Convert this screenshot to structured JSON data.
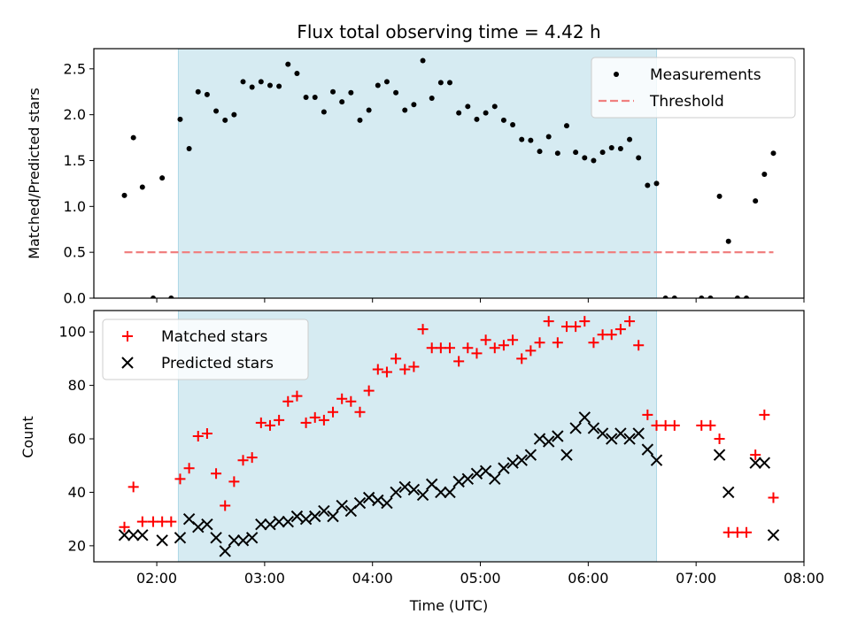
{
  "chart_data": [
    {
      "type": "scatter",
      "title": "Flux total observing time = 4.42 h",
      "xlabel": "",
      "ylabel": "Matched/Predicted stars",
      "ylim": [
        0,
        2.72
      ],
      "xlim": [
        "01:25",
        "08:00"
      ],
      "yticks": [
        "0.0",
        "0.5",
        "1.0",
        "1.5",
        "2.0",
        "2.5"
      ],
      "shaded_span": [
        "02:12",
        "06:38"
      ],
      "legend_placement": "top-right",
      "series": [
        {
          "name": "Measurements",
          "marker": "dot",
          "color": "#000000",
          "points": [
            [
              "01:42",
              1.12
            ],
            [
              "01:47",
              1.75
            ],
            [
              "01:52",
              1.21
            ],
            [
              "01:58",
              0.0
            ],
            [
              "02:03",
              1.31
            ],
            [
              "02:08",
              0.0
            ],
            [
              "02:13",
              1.95
            ],
            [
              "02:18",
              1.63
            ],
            [
              "02:23",
              2.25
            ],
            [
              "02:28",
              2.22
            ],
            [
              "02:33",
              2.04
            ],
            [
              "02:38",
              1.94
            ],
            [
              "02:43",
              2.0
            ],
            [
              "02:48",
              2.36
            ],
            [
              "02:53",
              2.3
            ],
            [
              "02:58",
              2.36
            ],
            [
              "03:03",
              2.32
            ],
            [
              "03:08",
              2.31
            ],
            [
              "03:13",
              2.55
            ],
            [
              "03:18",
              2.45
            ],
            [
              "03:23",
              2.19
            ],
            [
              "03:28",
              2.19
            ],
            [
              "03:33",
              2.03
            ],
            [
              "03:38",
              2.25
            ],
            [
              "03:43",
              2.14
            ],
            [
              "03:48",
              2.24
            ],
            [
              "03:53",
              1.94
            ],
            [
              "03:58",
              2.05
            ],
            [
              "04:03",
              2.32
            ],
            [
              "04:08",
              2.36
            ],
            [
              "04:13",
              2.24
            ],
            [
              "04:18",
              2.05
            ],
            [
              "04:23",
              2.11
            ],
            [
              "04:28",
              2.59
            ],
            [
              "04:33",
              2.18
            ],
            [
              "04:38",
              2.35
            ],
            [
              "04:43",
              2.35
            ],
            [
              "04:48",
              2.02
            ],
            [
              "04:53",
              2.09
            ],
            [
              "04:58",
              1.95
            ],
            [
              "05:03",
              2.02
            ],
            [
              "05:08",
              2.09
            ],
            [
              "05:13",
              1.94
            ],
            [
              "05:18",
              1.89
            ],
            [
              "05:23",
              1.73
            ],
            [
              "05:28",
              1.72
            ],
            [
              "05:33",
              1.6
            ],
            [
              "05:38",
              1.76
            ],
            [
              "05:43",
              1.58
            ],
            [
              "05:48",
              1.88
            ],
            [
              "05:53",
              1.59
            ],
            [
              "05:58",
              1.53
            ],
            [
              "06:03",
              1.5
            ],
            [
              "06:08",
              1.59
            ],
            [
              "06:13",
              1.64
            ],
            [
              "06:18",
              1.63
            ],
            [
              "06:23",
              1.73
            ],
            [
              "06:28",
              1.53
            ],
            [
              "06:33",
              1.23
            ],
            [
              "06:38",
              1.25
            ],
            [
              "06:43",
              0.0
            ],
            [
              "06:48",
              0.0
            ],
            [
              "07:03",
              0.0
            ],
            [
              "07:08",
              0.0
            ],
            [
              "07:13",
              1.11
            ],
            [
              "07:18",
              0.62
            ],
            [
              "07:23",
              0.0
            ],
            [
              "07:28",
              0.0
            ],
            [
              "07:33",
              1.06
            ],
            [
              "07:38",
              1.35
            ],
            [
              "07:43",
              1.58
            ]
          ]
        },
        {
          "name": "Threshold",
          "marker": "dashed-line",
          "color": "#f08080",
          "points": [
            [
              "01:42",
              0.5
            ],
            [
              "07:43",
              0.5
            ]
          ]
        }
      ]
    },
    {
      "type": "scatter",
      "title": "",
      "xlabel": "Time (UTC)",
      "ylabel": "Count",
      "ylim": [
        14,
        108
      ],
      "xlim": [
        "01:25",
        "08:00"
      ],
      "yticks": [
        "20",
        "40",
        "60",
        "80",
        "100"
      ],
      "xticks": [
        "02:00",
        "03:00",
        "04:00",
        "05:00",
        "06:00",
        "07:00",
        "08:00"
      ],
      "shaded_span": [
        "02:12",
        "06:38"
      ],
      "legend_placement": "top-left",
      "series": [
        {
          "name": "Matched stars",
          "marker": "plus",
          "color": "#ff0000",
          "points": [
            [
              "01:42",
              27
            ],
            [
              "01:47",
              42
            ],
            [
              "01:52",
              29
            ],
            [
              "01:58",
              29
            ],
            [
              "02:03",
              29
            ],
            [
              "02:08",
              29
            ],
            [
              "02:13",
              45
            ],
            [
              "02:18",
              49
            ],
            [
              "02:23",
              61
            ],
            [
              "02:28",
              62
            ],
            [
              "02:33",
              47
            ],
            [
              "02:38",
              35
            ],
            [
              "02:43",
              44
            ],
            [
              "02:48",
              52
            ],
            [
              "02:53",
              53
            ],
            [
              "02:58",
              66
            ],
            [
              "03:03",
              65
            ],
            [
              "03:08",
              67
            ],
            [
              "03:13",
              74
            ],
            [
              "03:18",
              76
            ],
            [
              "03:23",
              66
            ],
            [
              "03:28",
              68
            ],
            [
              "03:33",
              67
            ],
            [
              "03:38",
              70
            ],
            [
              "03:43",
              75
            ],
            [
              "03:48",
              74
            ],
            [
              "03:53",
              70
            ],
            [
              "03:58",
              78
            ],
            [
              "04:03",
              86
            ],
            [
              "04:08",
              85
            ],
            [
              "04:13",
              90
            ],
            [
              "04:18",
              86
            ],
            [
              "04:23",
              87
            ],
            [
              "04:28",
              101
            ],
            [
              "04:33",
              94
            ],
            [
              "04:38",
              94
            ],
            [
              "04:43",
              94
            ],
            [
              "04:48",
              89
            ],
            [
              "04:53",
              94
            ],
            [
              "04:58",
              92
            ],
            [
              "05:03",
              97
            ],
            [
              "05:08",
              94
            ],
            [
              "05:13",
              95
            ],
            [
              "05:18",
              97
            ],
            [
              "05:23",
              90
            ],
            [
              "05:28",
              93
            ],
            [
              "05:33",
              96
            ],
            [
              "05:38",
              104
            ],
            [
              "05:43",
              96
            ],
            [
              "05:48",
              102
            ],
            [
              "05:53",
              102
            ],
            [
              "05:58",
              104
            ],
            [
              "06:03",
              96
            ],
            [
              "06:08",
              99
            ],
            [
              "06:13",
              99
            ],
            [
              "06:18",
              101
            ],
            [
              "06:23",
              104
            ],
            [
              "06:28",
              95
            ],
            [
              "06:33",
              69
            ],
            [
              "06:38",
              65
            ],
            [
              "06:43",
              65
            ],
            [
              "06:48",
              65
            ],
            [
              "07:03",
              65
            ],
            [
              "07:08",
              65
            ],
            [
              "07:13",
              60
            ],
            [
              "07:18",
              25
            ],
            [
              "07:23",
              25
            ],
            [
              "07:28",
              25
            ],
            [
              "07:33",
              54
            ],
            [
              "07:38",
              69
            ],
            [
              "07:43",
              38
            ]
          ]
        },
        {
          "name": "Predicted stars",
          "marker": "x",
          "color": "#000000",
          "points": [
            [
              "01:42",
              24
            ],
            [
              "01:47",
              24
            ],
            [
              "01:52",
              24
            ],
            [
              "02:03",
              22
            ],
            [
              "02:13",
              23
            ],
            [
              "02:18",
              30
            ],
            [
              "02:23",
              27
            ],
            [
              "02:28",
              28
            ],
            [
              "02:33",
              23
            ],
            [
              "02:38",
              18
            ],
            [
              "02:43",
              22
            ],
            [
              "02:48",
              22
            ],
            [
              "02:53",
              23
            ],
            [
              "02:58",
              28
            ],
            [
              "03:03",
              28
            ],
            [
              "03:08",
              29
            ],
            [
              "03:13",
              29
            ],
            [
              "03:18",
              31
            ],
            [
              "03:23",
              30
            ],
            [
              "03:28",
              31
            ],
            [
              "03:33",
              33
            ],
            [
              "03:38",
              31
            ],
            [
              "03:43",
              35
            ],
            [
              "03:48",
              33
            ],
            [
              "03:53",
              36
            ],
            [
              "03:58",
              38
            ],
            [
              "04:03",
              37
            ],
            [
              "04:08",
              36
            ],
            [
              "04:13",
              40
            ],
            [
              "04:18",
              42
            ],
            [
              "04:23",
              41
            ],
            [
              "04:28",
              39
            ],
            [
              "04:33",
              43
            ],
            [
              "04:38",
              40
            ],
            [
              "04:43",
              40
            ],
            [
              "04:48",
              44
            ],
            [
              "04:53",
              45
            ],
            [
              "04:58",
              47
            ],
            [
              "05:03",
              48
            ],
            [
              "05:08",
              45
            ],
            [
              "05:13",
              49
            ],
            [
              "05:18",
              51
            ],
            [
              "05:23",
              52
            ],
            [
              "05:28",
              54
            ],
            [
              "05:33",
              60
            ],
            [
              "05:38",
              59
            ],
            [
              "05:43",
              61
            ],
            [
              "05:48",
              54
            ],
            [
              "05:53",
              64
            ],
            [
              "05:58",
              68
            ],
            [
              "06:03",
              64
            ],
            [
              "06:08",
              62
            ],
            [
              "06:13",
              60
            ],
            [
              "06:18",
              62
            ],
            [
              "06:23",
              60
            ],
            [
              "06:28",
              62
            ],
            [
              "06:33",
              56
            ],
            [
              "06:38",
              52
            ],
            [
              "07:13",
              54
            ],
            [
              "07:18",
              40
            ],
            [
              "07:33",
              51
            ],
            [
              "07:38",
              51
            ],
            [
              "07:43",
              24
            ]
          ]
        }
      ]
    }
  ]
}
